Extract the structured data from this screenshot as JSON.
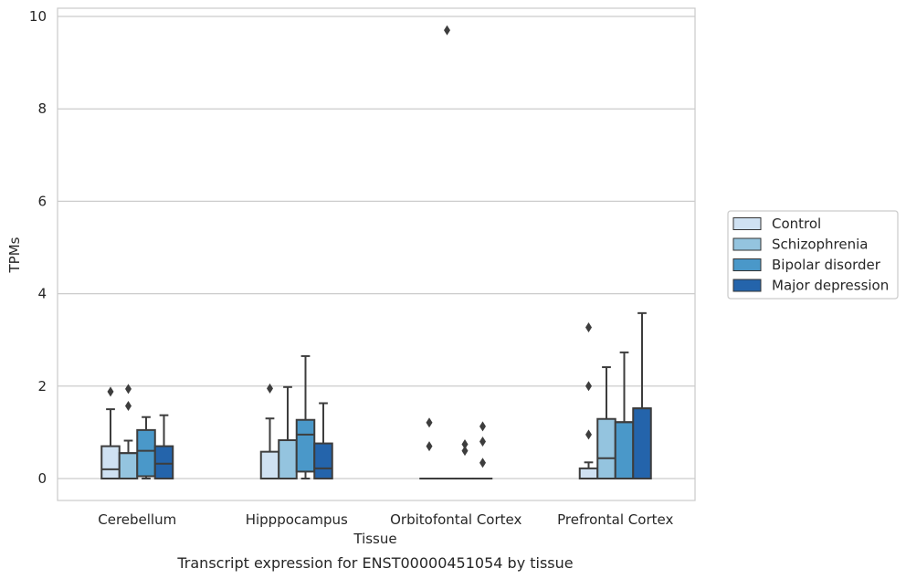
{
  "chart_data": {
    "type": "boxplot",
    "title": "",
    "caption": "Transcript expression for ENST00000451054 by tissue",
    "xlabel": "Tissue",
    "ylabel": "TPMs",
    "ylim": [
      -0.45,
      10.2
    ],
    "yticks": [
      0,
      2,
      4,
      6,
      8,
      10
    ],
    "grid": "horizontal",
    "legend_position": "right",
    "categories": [
      "Cerebellum",
      "Hipppocampus",
      "Orbitofontal Cortex",
      "Prefrontal Cortex"
    ],
    "series": [
      {
        "name": "Control",
        "color": "#cfe1f2",
        "boxes": [
          {
            "whislo": 0,
            "q1": 0,
            "med": 0.2,
            "q3": 0.7,
            "whishi": 1.5,
            "fliers": [
              1.88
            ]
          },
          {
            "whislo": 0,
            "q1": 0,
            "med": 0,
            "q3": 0.58,
            "whishi": 1.3,
            "fliers": [
              1.95
            ]
          },
          {
            "whislo": 0,
            "q1": 0,
            "med": 0,
            "q3": 0,
            "whishi": 0,
            "fliers": [
              1.21,
              0.7
            ]
          },
          {
            "whislo": 0,
            "q1": 0,
            "med": 0,
            "q3": 0.22,
            "whishi": 0.35,
            "fliers": [
              3.27,
              2.0,
              0.95
            ]
          }
        ]
      },
      {
        "name": "Schizophrenia",
        "color": "#94c4df",
        "boxes": [
          {
            "whislo": 0,
            "q1": 0,
            "med": 0.55,
            "q3": 0.55,
            "whishi": 0.82,
            "fliers": [
              1.94,
              1.57
            ]
          },
          {
            "whislo": 0,
            "q1": 0,
            "med": 0.83,
            "q3": 0.83,
            "whishi": 1.98,
            "fliers": []
          },
          {
            "whislo": 0,
            "q1": 0,
            "med": 0,
            "q3": 0,
            "whishi": 0,
            "fliers": [
              9.7
            ]
          },
          {
            "whislo": 0,
            "q1": 0,
            "med": 0.44,
            "q3": 1.29,
            "whishi": 2.41,
            "fliers": []
          }
        ]
      },
      {
        "name": "Bipolar disorder",
        "color": "#4a98c9",
        "boxes": [
          {
            "whislo": 0,
            "q1": 0.05,
            "med": 0.6,
            "q3": 1.05,
            "whishi": 1.33,
            "fliers": []
          },
          {
            "whislo": 0,
            "q1": 0.15,
            "med": 0.95,
            "q3": 1.27,
            "whishi": 2.65,
            "fliers": []
          },
          {
            "whislo": 0,
            "q1": 0,
            "med": 0,
            "q3": 0,
            "whishi": 0,
            "fliers": [
              0.74,
              0.6
            ]
          },
          {
            "whislo": 0,
            "q1": 0,
            "med": 1.22,
            "q3": 1.22,
            "whishi": 2.73,
            "fliers": []
          }
        ]
      },
      {
        "name": "Major depression",
        "color": "#2464ab",
        "boxes": [
          {
            "whislo": 0,
            "q1": 0,
            "med": 0.32,
            "q3": 0.7,
            "whishi": 1.37,
            "fliers": []
          },
          {
            "whislo": 0,
            "q1": 0,
            "med": 0.22,
            "q3": 0.76,
            "whishi": 1.63,
            "fliers": []
          },
          {
            "whislo": 0,
            "q1": 0,
            "med": 0,
            "q3": 0,
            "whishi": 0,
            "fliers": [
              1.13,
              0.8,
              0.34
            ]
          },
          {
            "whislo": 0,
            "q1": 0,
            "med": 1.52,
            "q3": 1.52,
            "whishi": 3.58,
            "fliers": []
          }
        ]
      }
    ]
  }
}
